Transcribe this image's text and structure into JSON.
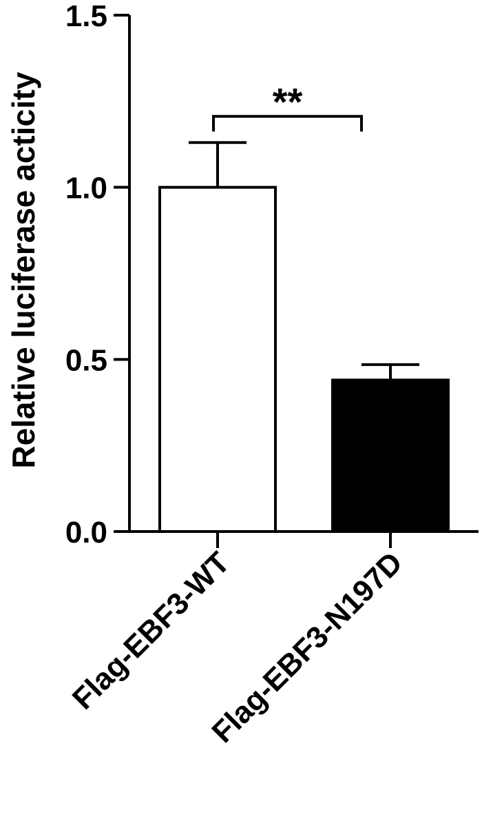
{
  "chart_data": {
    "type": "bar",
    "y_label": "Relative luciferase acticity",
    "categories": [
      "Flag-EBF3-WT",
      "Flag-EBF3-N197D"
    ],
    "values": [
      1.0,
      0.44
    ],
    "errors": [
      0.13,
      0.045
    ],
    "colors": [
      "#ffffff",
      "#000000"
    ],
    "ylim": [
      0,
      1.5
    ],
    "yticks": [
      {
        "value": 0,
        "label": "0.0"
      },
      0.5,
      {
        "value": 1,
        "label": "1.0"
      },
      1.5
    ],
    "annotation": "**"
  }
}
